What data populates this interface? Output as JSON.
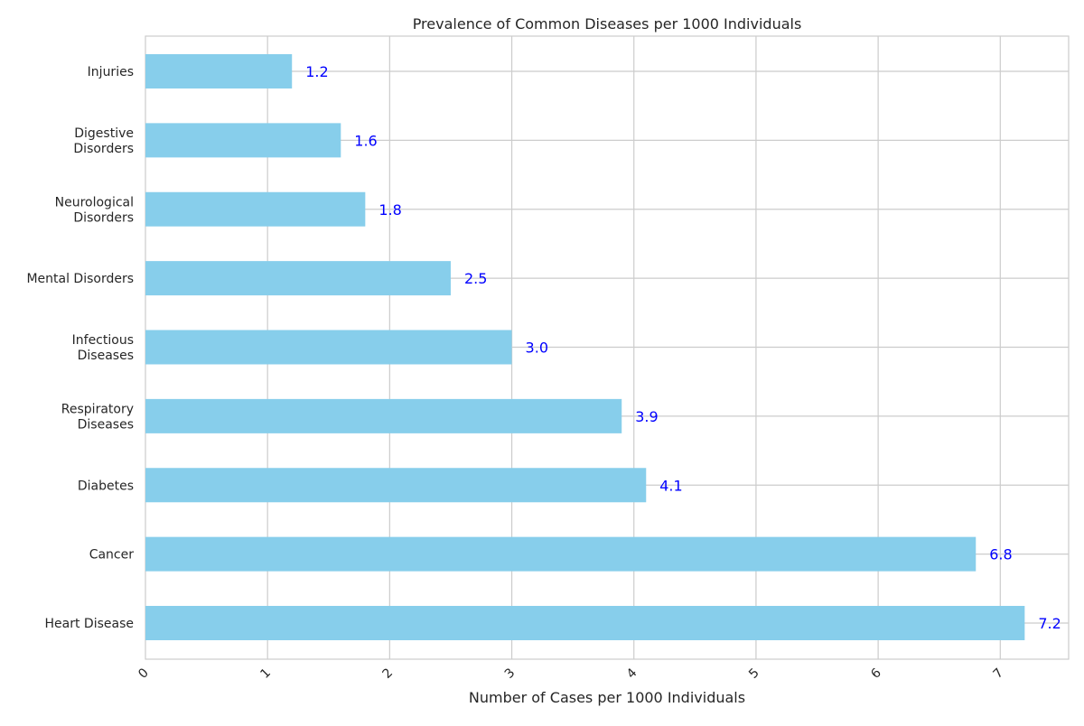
{
  "chart_data": {
    "type": "bar",
    "orientation": "horizontal",
    "title": "Prevalence of Common Diseases per 1000 Individuals",
    "xlabel": "Number of Cases per 1000 Individuals",
    "ylabel": "",
    "xlim": [
      0,
      7.56
    ],
    "xticks": [
      0,
      1,
      2,
      3,
      4,
      5,
      6,
      7
    ],
    "grid": true,
    "categories": [
      [
        "Heart Disease"
      ],
      [
        "Cancer"
      ],
      [
        "Diabetes"
      ],
      [
        "Respiratory",
        "Diseases"
      ],
      [
        "Infectious",
        "Diseases"
      ],
      [
        "Mental Disorders"
      ],
      [
        "Neurological",
        "Disorders"
      ],
      [
        "Digestive",
        "Disorders"
      ],
      [
        "Injuries"
      ]
    ],
    "values": [
      7.2,
      6.8,
      4.1,
      3.9,
      3.0,
      2.5,
      1.8,
      1.6,
      1.2
    ],
    "value_labels": [
      "7.2",
      "6.8",
      "4.1",
      "3.9",
      "3.0",
      "2.5",
      "1.8",
      "1.6",
      "1.2"
    ],
    "colors": {
      "bar": "#87ceeb",
      "label": "#0000ff",
      "grid": "#cccccc",
      "text": "#262626"
    }
  }
}
